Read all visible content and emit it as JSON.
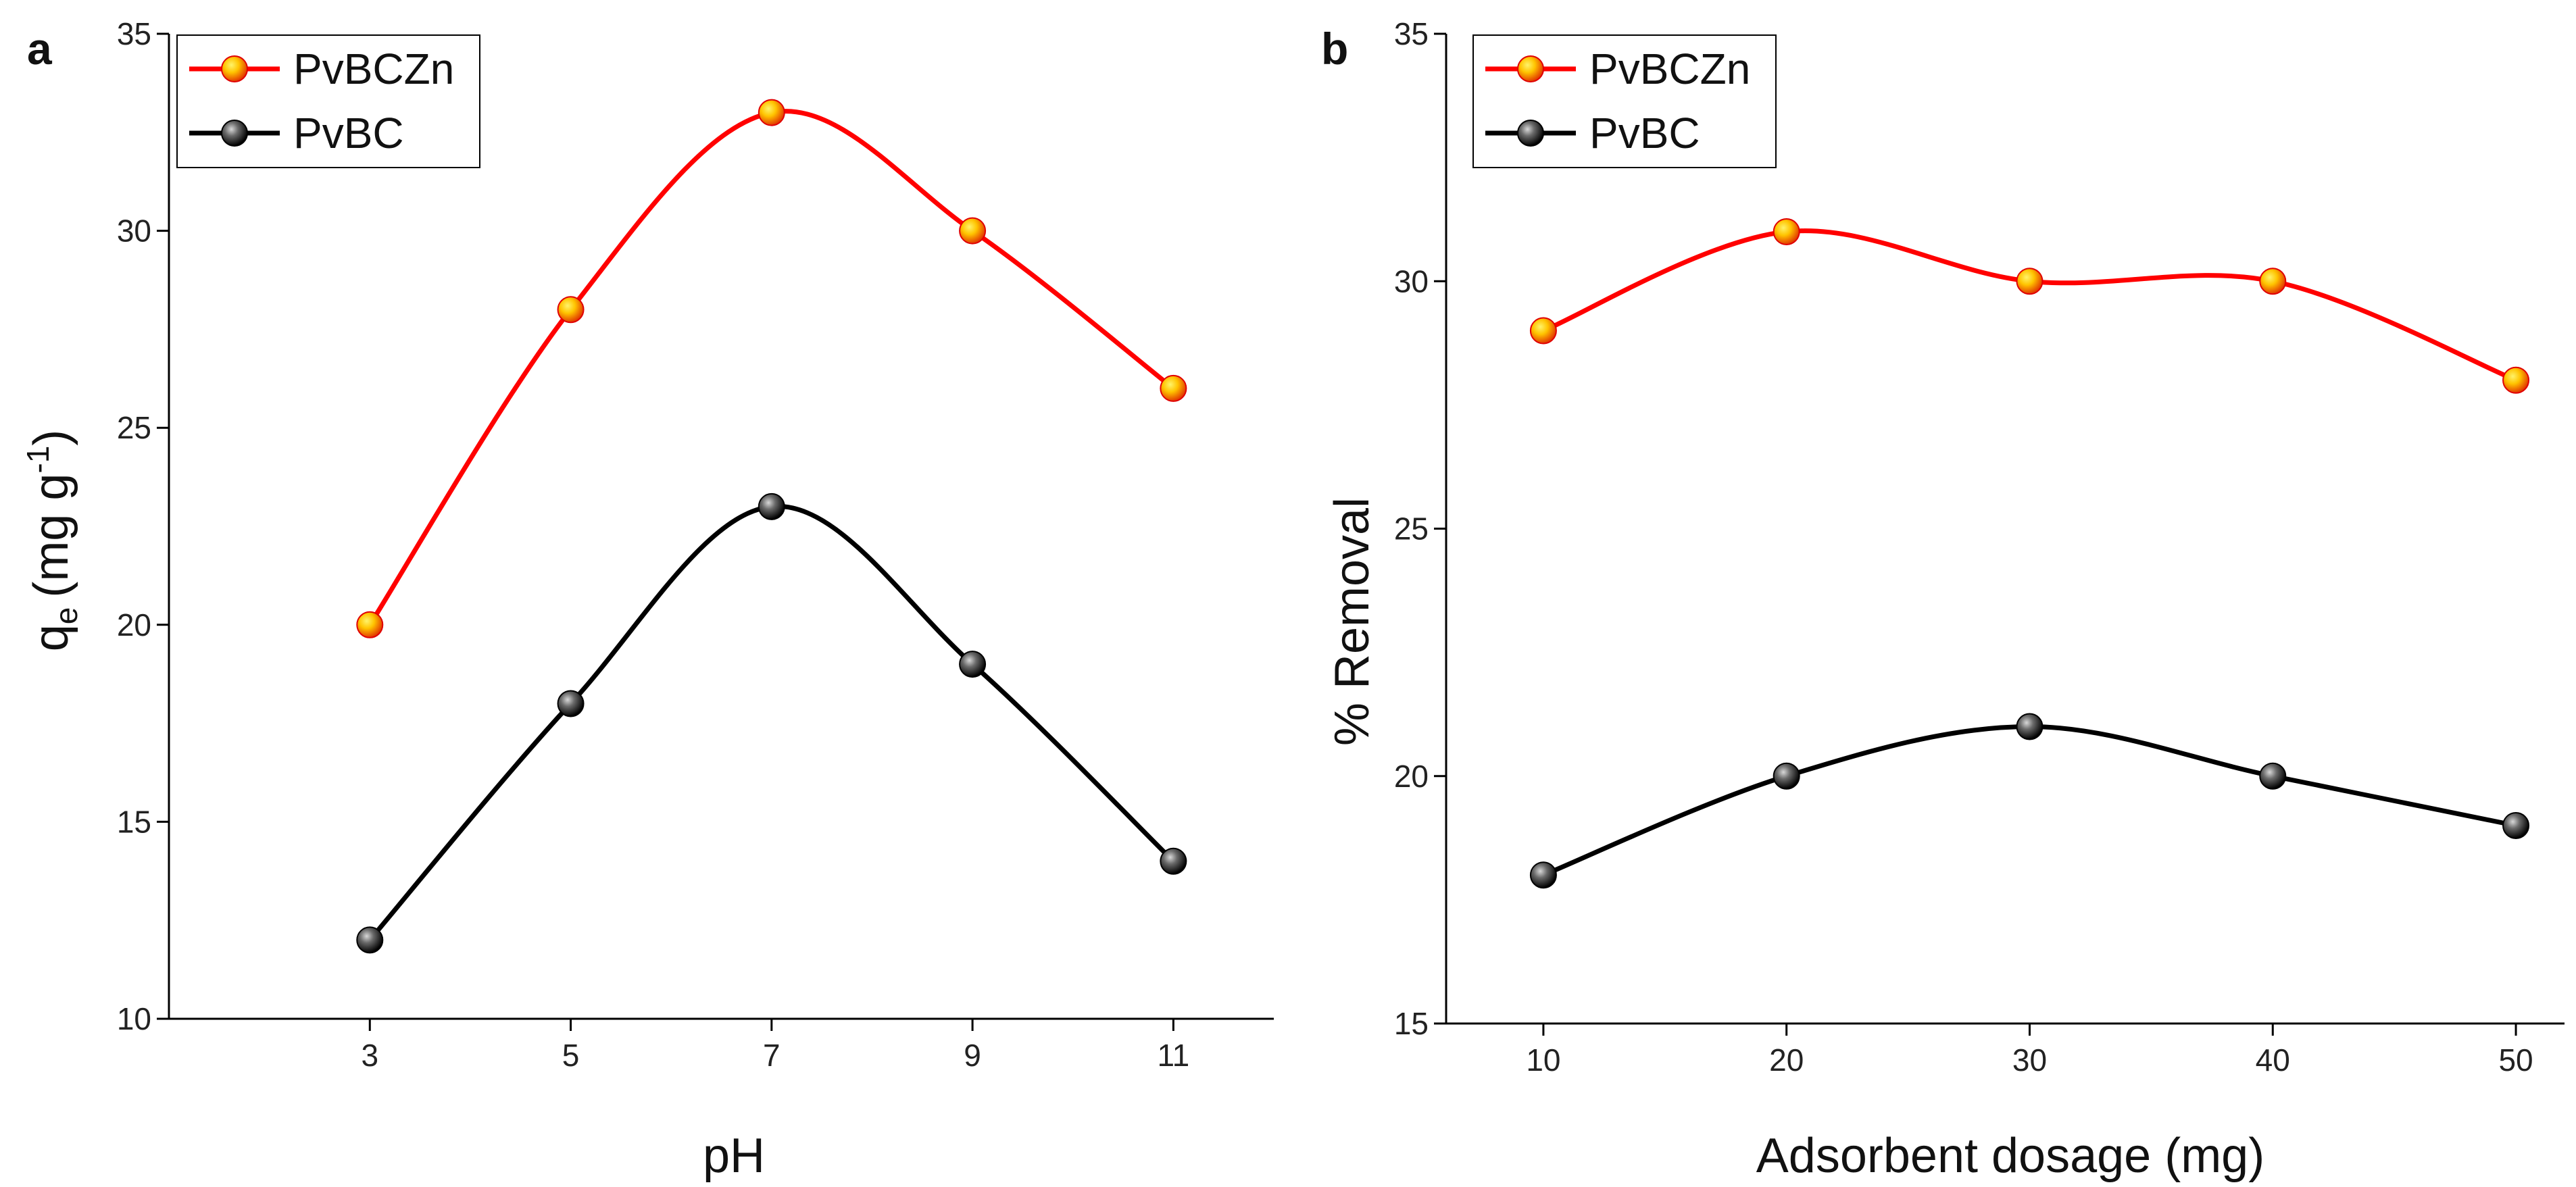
{
  "colors": {
    "series_red": "#ff0000",
    "series_black": "#000000",
    "marker_red_core": "#ffd200",
    "marker_red_edge": "#e00000",
    "marker_black_core": "#7a7a7a",
    "marker_black_edge": "#000000"
  },
  "chart_data": [
    {
      "type": "line",
      "panel_label": "a",
      "title": "",
      "xlabel": "pH",
      "ylabel_main": "q",
      "ylabel_sub": "e",
      "ylabel_unit_prefix": "(mg g",
      "ylabel_sup": "-1",
      "ylabel_unit_suffix": ")",
      "x": [
        3,
        5,
        7,
        9,
        11
      ],
      "x_ticks": [
        "3",
        "5",
        "7",
        "9",
        "11"
      ],
      "xlim": [
        1.0,
        12.0
      ],
      "ylim": [
        10,
        35
      ],
      "y_ticks": [
        "10",
        "15",
        "20",
        "25",
        "30",
        "35"
      ],
      "grid": false,
      "legend_placement": "top-left",
      "series": [
        {
          "name": "PvBCZn",
          "color": "#ff0000",
          "values": [
            20,
            28,
            33,
            30,
            26
          ]
        },
        {
          "name": "PvBC",
          "color": "#000000",
          "values": [
            12,
            18,
            23,
            19,
            14
          ]
        }
      ]
    },
    {
      "type": "line",
      "panel_label": "b",
      "title": "",
      "xlabel": "Adsorbent dosage (mg)",
      "ylabel": "% Removal",
      "x": [
        10,
        20,
        30,
        40,
        50
      ],
      "x_ticks": [
        "10",
        "20",
        "30",
        "40",
        "50"
      ],
      "xlim": [
        6,
        52
      ],
      "ylim": [
        15,
        35
      ],
      "y_ticks": [
        "15",
        "20",
        "25",
        "30",
        "35"
      ],
      "grid": false,
      "legend_placement": "top-left",
      "series": [
        {
          "name": "PvBCZn",
          "color": "#ff0000",
          "values": [
            29,
            31,
            30,
            30,
            28
          ]
        },
        {
          "name": "PvBC",
          "color": "#000000",
          "values": [
            18,
            20,
            21,
            20,
            19
          ]
        }
      ]
    }
  ]
}
